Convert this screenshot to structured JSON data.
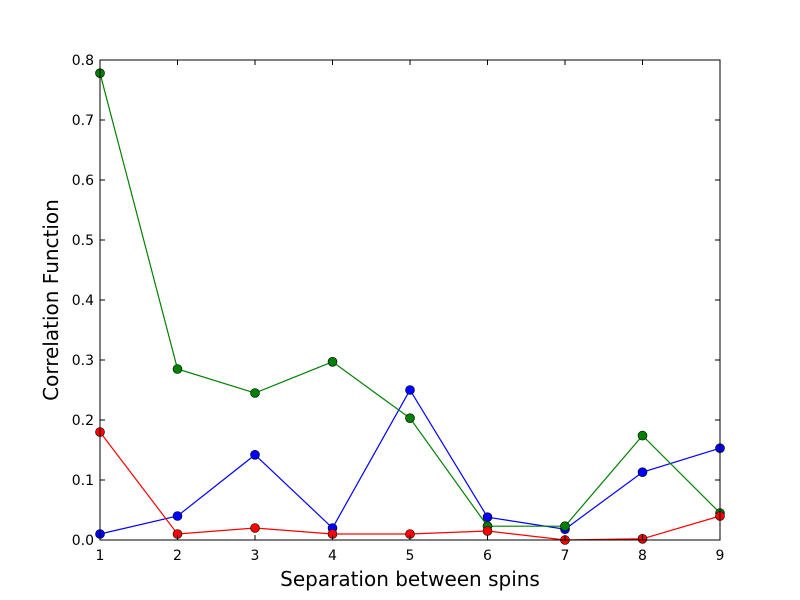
{
  "chart_data": {
    "type": "line",
    "title": "",
    "xlabel": "Separation between spins",
    "ylabel": "Correlation Function",
    "x": [
      1,
      2,
      3,
      4,
      5,
      6,
      7,
      8,
      9
    ],
    "xlim": [
      1,
      9
    ],
    "ylim": [
      0.0,
      0.8
    ],
    "xticks": [
      "1",
      "2",
      "3",
      "4",
      "5",
      "6",
      "7",
      "8",
      "9"
    ],
    "yticks": [
      "0.0",
      "0.1",
      "0.2",
      "0.3",
      "0.4",
      "0.5",
      "0.6",
      "0.7",
      "0.8"
    ],
    "grid": false,
    "series": [
      {
        "color": "#0000ff",
        "values": [
          0.01,
          0.04,
          0.142,
          0.02,
          0.25,
          0.038,
          0.018,
          0.113,
          0.153
        ]
      },
      {
        "color": "#008000",
        "values": [
          0.778,
          0.285,
          0.245,
          0.297,
          0.203,
          0.023,
          0.023,
          0.174,
          0.045
        ]
      },
      {
        "color": "#ff0000",
        "values": [
          0.18,
          0.01,
          0.02,
          0.01,
          0.01,
          0.015,
          0.0,
          0.002,
          0.04
        ]
      }
    ]
  }
}
